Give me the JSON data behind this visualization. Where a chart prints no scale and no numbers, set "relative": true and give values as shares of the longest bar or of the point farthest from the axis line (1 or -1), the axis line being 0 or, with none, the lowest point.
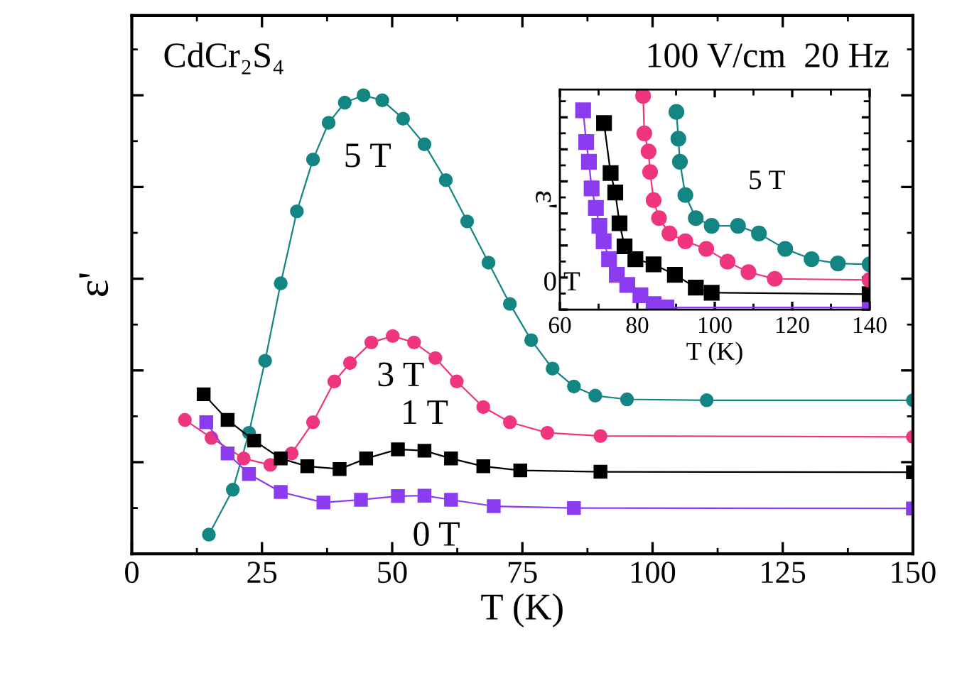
{
  "chart_data": [
    {
      "type": "line",
      "xlabel": "T (K)",
      "ylabel": "ε'",
      "relative": true,
      "xlim": [
        0,
        150
      ],
      "xticks": [
        0,
        25,
        50,
        75,
        100,
        125,
        150
      ],
      "grid": false,
      "legend": false,
      "annotations": [
        "CdCr₂S₄",
        "100 V/cm  20 Hz"
      ],
      "series": [
        {
          "name": "5 T",
          "color": "#138582",
          "marker": "circle",
          "x": [
            14.8,
            19.4,
            22.5,
            25.6,
            28.6,
            31.7,
            34.8,
            37.8,
            40.9,
            44.5,
            48.1,
            52.1,
            56.2,
            60.3,
            64.4,
            68.5,
            72.6,
            76.7,
            80.8,
            84.9,
            89,
            95.1,
            110.4,
            150
          ],
          "values": [
            0.042,
            0.14,
            0.264,
            0.421,
            0.59,
            0.747,
            0.86,
            0.94,
            0.984,
            1.0,
            0.989,
            0.949,
            0.893,
            0.815,
            0.725,
            0.635,
            0.545,
            0.466,
            0.404,
            0.365,
            0.345,
            0.337,
            0.335,
            0.335
          ]
        },
        {
          "name": "3 T",
          "color": "#f0357f",
          "marker": "circle",
          "x": [
            10.2,
            15.3,
            21.5,
            26.6,
            30.7,
            34.8,
            38.9,
            41.9,
            46,
            50.1,
            54.2,
            58.3,
            62.4,
            67.5,
            72.6,
            79.8,
            90,
            150
          ],
          "values": [
            0.292,
            0.253,
            0.208,
            0.194,
            0.219,
            0.287,
            0.376,
            0.416,
            0.461,
            0.475,
            0.461,
            0.427,
            0.376,
            0.32,
            0.287,
            0.264,
            0.257,
            0.255
          ]
        },
        {
          "name": "1 T",
          "color": "#000000",
          "marker": "square",
          "x": [
            13.8,
            18.4,
            23.5,
            28.6,
            33.7,
            39.9,
            45,
            51.1,
            56.2,
            61.3,
            67.5,
            74.6,
            90,
            150
          ],
          "values": [
            0.348,
            0.292,
            0.247,
            0.208,
            0.191,
            0.185,
            0.208,
            0.228,
            0.225,
            0.208,
            0.191,
            0.182,
            0.179,
            0.178
          ]
        },
        {
          "name": "0 T",
          "color": "#8b3cf0",
          "marker": "square",
          "x": [
            14.3,
            18.4,
            22.5,
            28.6,
            36.8,
            44,
            51.1,
            56.2,
            61.3,
            69.5,
            84.9,
            150
          ],
          "values": [
            0.287,
            0.219,
            0.174,
            0.135,
            0.112,
            0.118,
            0.126,
            0.127,
            0.118,
            0.104,
            0.1,
            0.099
          ]
        }
      ]
    },
    {
      "type": "line",
      "xlabel": "T (K)",
      "ylabel": "ε'",
      "relative": true,
      "xlim": [
        60,
        140
      ],
      "xticks": [
        60,
        80,
        100,
        120,
        140
      ],
      "grid": false,
      "legend": false,
      "series": [
        {
          "name": "0 T",
          "color": "#8b3cf0",
          "marker": "square",
          "x": [
            66,
            66.8,
            67.5,
            68.2,
            69.3,
            70.2,
            71.3,
            72.7,
            74.7,
            77.4,
            80.8,
            84.2,
            87.5,
            140
          ],
          "values": [
            0.933,
            0.784,
            0.692,
            0.567,
            0.476,
            0.392,
            0.32,
            0.236,
            0.163,
            0.115,
            0.067,
            0.026,
            0.01,
            0.01
          ]
        },
        {
          "color": "#000000",
          "marker": "square",
          "x": [
            71.4,
            73.1,
            74.3,
            75.4,
            76.7,
            79.5,
            84.2,
            89.7,
            95.1,
            99.2,
            140
          ],
          "values": [
            0.873,
            0.639,
            0.548,
            0.404,
            0.296,
            0.236,
            0.212,
            0.163,
            0.103,
            0.079,
            0.072
          ]
        },
        {
          "color": "#f0357f",
          "marker": "circle",
          "x": [
            81.5,
            81.8,
            82.9,
            83.3,
            84.2,
            85.6,
            88.3,
            92.4,
            97.8,
            103.3,
            108.7,
            115.5,
            140
          ],
          "values": [
            1.0,
            0.825,
            0.74,
            0.644,
            0.512,
            0.428,
            0.356,
            0.32,
            0.284,
            0.224,
            0.175,
            0.144,
            0.139
          ]
        },
        {
          "name": "5 T",
          "color": "#138582",
          "marker": "circle",
          "x": [
            90.1,
            90.6,
            91,
            92.4,
            95.1,
            99.2,
            106,
            111.4,
            118.2,
            125,
            131.8,
            140
          ],
          "values": [
            0.925,
            0.8,
            0.692,
            0.536,
            0.428,
            0.392,
            0.392,
            0.356,
            0.284,
            0.236,
            0.216,
            0.212
          ]
        }
      ]
    }
  ]
}
